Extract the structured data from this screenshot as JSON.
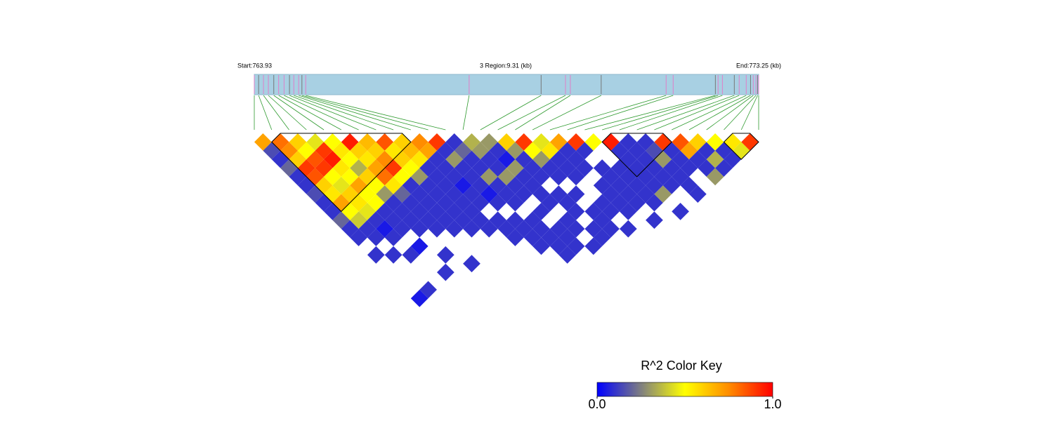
{
  "chart_data": {
    "type": "ld_heatmap",
    "start_label": "Start:763.93",
    "region_label": "3 Region:9.31 (kb)",
    "end_label": "End:773.25 (kb)",
    "xlim": [
      763.93,
      773.25
    ],
    "positions": [
      763.93,
      764.01,
      764.1,
      764.19,
      764.29,
      764.38,
      764.48,
      764.58,
      764.66,
      764.75,
      764.81,
      764.88,
      767.9,
      769.23,
      769.68,
      769.77,
      770.34,
      771.54,
      771.67,
      772.45,
      772.5,
      772.58,
      772.8,
      772.89,
      773.02,
      773.1,
      773.15,
      773.2,
      773.23,
      773.25
    ],
    "r2": [
      [
        0.7,
        0.15,
        0.1,
        0.2,
        0.1,
        0.1,
        0.15,
        0.1,
        0.1,
        0.2,
        0.1,
        0.1,
        null,
        0.1,
        null,
        null,
        null,
        null,
        0.05,
        null,
        null,
        null,
        null,
        null,
        null,
        null,
        null,
        null,
        null
      ],
      [
        0.8,
        0.75,
        0.6,
        0.9,
        0.85,
        0.6,
        0.55,
        0.7,
        0.5,
        0.4,
        0.1,
        0.1,
        null,
        0.1,
        null,
        null,
        null,
        0.1,
        null,
        null,
        null,
        null,
        null,
        null,
        null,
        null,
        null,
        null
      ],
      [
        0.6,
        0.5,
        0.85,
        0.9,
        0.5,
        0.45,
        0.6,
        0.55,
        0.45,
        0.1,
        0.05,
        0.1,
        null,
        0.1,
        null,
        null,
        null,
        null,
        null,
        null,
        null,
        null,
        null,
        null,
        null,
        null,
        null
      ],
      [
        0.45,
        0.9,
        0.95,
        0.55,
        0.5,
        0.7,
        0.5,
        0.5,
        0.1,
        0.1,
        0.1,
        null,
        0.05,
        null,
        null,
        0.1,
        null,
        null,
        null,
        null,
        null,
        null,
        null,
        null,
        null,
        null
      ],
      [
        0.5,
        0.55,
        0.5,
        0.35,
        0.6,
        0.5,
        0.3,
        0.1,
        0.1,
        0.1,
        0.1,
        null,
        null,
        0.1,
        null,
        null,
        null,
        null,
        null,
        null,
        null,
        null,
        null,
        null,
        null
      ],
      [
        0.95,
        0.6,
        0.55,
        0.7,
        0.8,
        0.55,
        0.2,
        0.1,
        0.1,
        0.1,
        0.1,
        null,
        null,
        null,
        0.1,
        null,
        null,
        null,
        null,
        null,
        null,
        null,
        null,
        null
      ],
      [
        0.65,
        0.6,
        0.75,
        0.9,
        0.5,
        0.1,
        0.1,
        0.1,
        0.1,
        0.1,
        0.1,
        null,
        null,
        null,
        null,
        null,
        null,
        null,
        null,
        null,
        null,
        null,
        null
      ],
      [
        0.85,
        0.55,
        0.6,
        0.5,
        0.3,
        0.1,
        0.1,
        0.1,
        0.1,
        0.1,
        0.1,
        null,
        null,
        null,
        null,
        null,
        null,
        null,
        null,
        null,
        null,
        null
      ],
      [
        0.6,
        0.65,
        0.55,
        0.1,
        0.1,
        0.1,
        0.1,
        0.1,
        0.1,
        0.1,
        0.1,
        null,
        null,
        null,
        null,
        null,
        null,
        null,
        null,
        null,
        null
      ],
      [
        0.75,
        0.7,
        0.1,
        0.1,
        0.1,
        0.05,
        0.1,
        0.1,
        null,
        0.1,
        0.1,
        0.1,
        null,
        null,
        null,
        null,
        null,
        null,
        null,
        null
      ],
      [
        0.9,
        0.1,
        0.3,
        0.1,
        0.1,
        0.1,
        0.05,
        0.1,
        null,
        0.1,
        0.1,
        0.1,
        0.1,
        null,
        null,
        null,
        null,
        null,
        null
      ],
      [
        0.1,
        0.2,
        0.1,
        0.1,
        0.3,
        0.1,
        0.1,
        0.1,
        null,
        0.1,
        0.1,
        0.1,
        0.1,
        0.1,
        null,
        null,
        null,
        null
      ],
      [
        0.35,
        0.3,
        0.1,
        0.1,
        0.3,
        0.1,
        0.1,
        null,
        0.1,
        null,
        0.1,
        0.1,
        0.1,
        null,
        null,
        null,
        null
      ],
      [
        0.3,
        0.1,
        0.05,
        0.3,
        0.1,
        0.1,
        0.1,
        0.1,
        null,
        0.1,
        0.1,
        null,
        0.1,
        null,
        null,
        null
      ],
      [
        0.6,
        0.3,
        0.1,
        0.1,
        0.1,
        null,
        0.1,
        0.1,
        0.1,
        null,
        0.1,
        0.1,
        null,
        null,
        null
      ],
      [
        0.9,
        0.5,
        0.3,
        0.1,
        0.1,
        null,
        0.1,
        null,
        0.1,
        0.1,
        0.1,
        null,
        null,
        null
      ],
      [
        0.45,
        0.55,
        0.1,
        0.1,
        0.1,
        null,
        null,
        0.1,
        0.1,
        null,
        0.1,
        null,
        null
      ],
      [
        0.7,
        0.1,
        0.1,
        0.1,
        null,
        0.1,
        0.1,
        0.1,
        0.1,
        null,
        null,
        null
      ],
      [
        0.9,
        0.1,
        null,
        0.1,
        0.1,
        0.1,
        0.1,
        0.1,
        null,
        0.1,
        null
      ],
      [
        0.5,
        null,
        null,
        0.1,
        0.1,
        0.1,
        0.1,
        0.1,
        null,
        null
      ],
      [
        0.95,
        0.1,
        0.1,
        0.1,
        0.1,
        0.1,
        0.3,
        null,
        0.1
      ],
      [
        0.1,
        0.1,
        0.1,
        0.1,
        0.1,
        0.1,
        null,
        null
      ],
      [
        0.1,
        0.15,
        0.3,
        0.1,
        0.1,
        0.1,
        0.1
      ],
      [
        0.9,
        0.1,
        0.1,
        0.1,
        null,
        null
      ],
      [
        0.85,
        0.7,
        0.1,
        0.1,
        0.3
      ],
      [
        0.6,
        0.1,
        0.35,
        0.1
      ],
      [
        0.5,
        0.1,
        0.1
      ],
      [
        0.55,
        0.45
      ],
      [
        0.9
      ]
    ],
    "blocks": [
      [
        1,
        9
      ],
      [
        20,
        24
      ],
      [
        27,
        29
      ]
    ],
    "colorkey": {
      "title": "R^2 Color Key",
      "ticks": [
        {
          "value": 0,
          "label": "0.0"
        },
        {
          "value": 1,
          "label": "1.0"
        }
      ],
      "colors": [
        "#0000ff",
        "#7f7f80",
        "#ffff00",
        "#ff8c00",
        "#ff0000"
      ]
    }
  }
}
